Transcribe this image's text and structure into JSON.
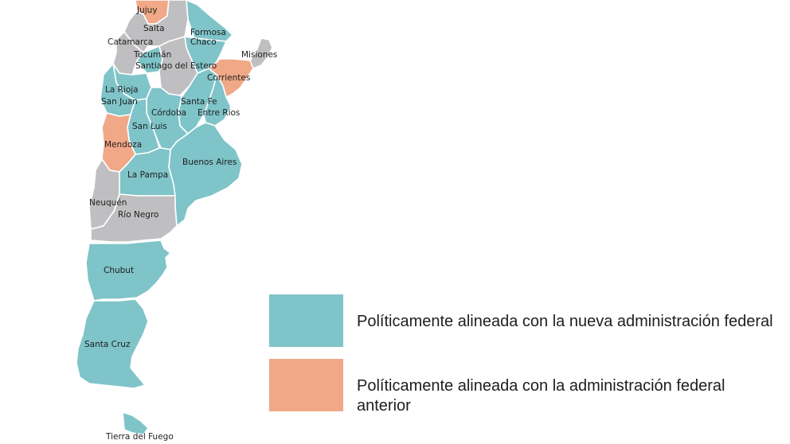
{
  "colors": {
    "aligned_new": "#7ec4c9",
    "aligned_previous": "#f0a887",
    "not_aligned": "#bfbfc1",
    "border": "#ffffff"
  },
  "legend": [
    {
      "key": "aligned_new",
      "color": "#7ec4c9",
      "text": "Políticamente alineada con la nueva administración federal"
    },
    {
      "key": "aligned_previous",
      "color": "#f0a887",
      "text": "Políticamente alineada con la administración federal anterior"
    }
  ],
  "provinces": [
    {
      "id": "jujuy",
      "name": "Jujuy",
      "category": "aligned_previous"
    },
    {
      "id": "salta",
      "name": "Salta",
      "category": "not_aligned"
    },
    {
      "id": "formosa",
      "name": "Formosa",
      "category": "aligned_new"
    },
    {
      "id": "chaco",
      "name": "Chaco",
      "category": "aligned_new"
    },
    {
      "id": "catamarca",
      "name": "Catamarca",
      "category": "not_aligned"
    },
    {
      "id": "misiones",
      "name": "Misiones",
      "category": "not_aligned"
    },
    {
      "id": "tucuman",
      "name": "Tucumán",
      "category": "aligned_new"
    },
    {
      "id": "santiago",
      "name": "Santiago del Estero",
      "category": "not_aligned"
    },
    {
      "id": "corrientes",
      "name": "Corrientes",
      "category": "aligned_previous"
    },
    {
      "id": "la_rioja",
      "name": "La Rioja",
      "category": "aligned_new"
    },
    {
      "id": "san_juan",
      "name": "San Juan",
      "category": "aligned_new"
    },
    {
      "id": "santa_fe",
      "name": "Santa Fe",
      "category": "aligned_new"
    },
    {
      "id": "cordoba",
      "name": "Córdoba",
      "category": "aligned_new"
    },
    {
      "id": "entre_rios",
      "name": "Entre Rios",
      "category": "aligned_new"
    },
    {
      "id": "san_luis",
      "name": "San Luis",
      "category": "aligned_new"
    },
    {
      "id": "mendoza",
      "name": "Mendoza",
      "category": "aligned_previous"
    },
    {
      "id": "buenos_aires",
      "name": "Buenos Aires",
      "category": "aligned_new"
    },
    {
      "id": "la_pampa",
      "name": "La Pampa",
      "category": "aligned_new"
    },
    {
      "id": "neuquen",
      "name": "Neuquén",
      "category": "not_aligned"
    },
    {
      "id": "rio_negro",
      "name": "Río Negro",
      "category": "not_aligned"
    },
    {
      "id": "chubut",
      "name": "Chubut",
      "category": "aligned_new"
    },
    {
      "id": "santa_cruz",
      "name": "Santa Cruz",
      "category": "aligned_new"
    },
    {
      "id": "tierra_del_fuego",
      "name": "Tierra del Fuego",
      "category": "aligned_new"
    }
  ]
}
